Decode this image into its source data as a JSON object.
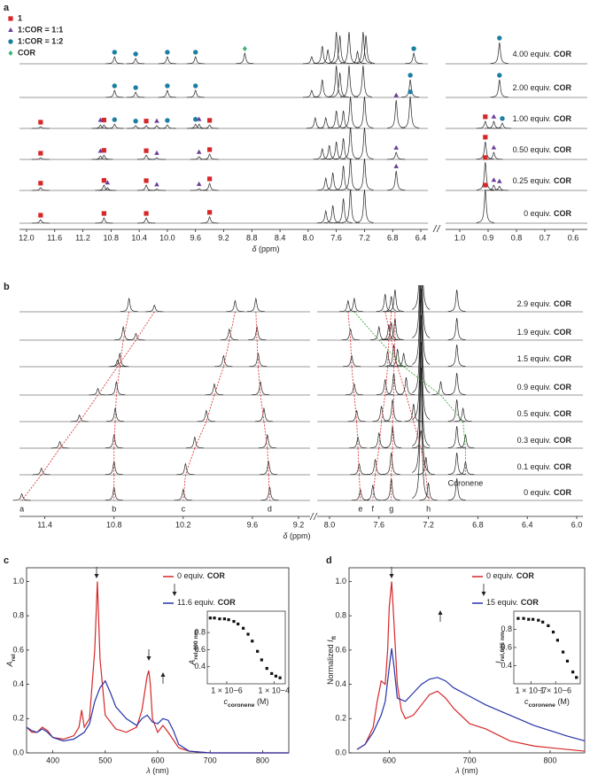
{
  "chart_data": [
    {
      "type": "nmr",
      "panel": "a",
      "compound": "COR",
      "xlabel": [
        "δ",
        " (ppm)"
      ],
      "xlim": [
        12.1,
        6.3
      ],
      "xticks": [
        {
          "value": 12,
          "label": "12.0"
        },
        11.6,
        11.2,
        10.8,
        10.4,
        {
          "value": 10,
          "label": "10.0"
        },
        9.6,
        9.2,
        8.8,
        8.4,
        {
          "value": 8,
          "label": "8.0"
        },
        7.6,
        7.2,
        6.8,
        6.4
      ],
      "x2lim": [
        1.05,
        0.55
      ],
      "x2ticks": [
        {
          "value": 1,
          "label": "1.0"
        },
        0.9,
        0.8,
        0.7,
        0.6
      ],
      "legend": [
        {
          "name": "1",
          "color": "#d62728",
          "marker": "square"
        },
        {
          "name": "1:COR = 1:1",
          "color": "#6a3d9a",
          "marker": "triangle"
        },
        {
          "name": "1:COR = 1:2",
          "color": "#1b7fa3",
          "marker": "circle"
        },
        {
          "name": "COR",
          "color": "#3cb371",
          "marker": "diamond"
        }
      ],
      "series": [
        {
          "name": "4.00 equiv.",
          "x": [
            10.75,
            10.45,
            10.0,
            9.6,
            8.9,
            7.95,
            7.8,
            7.72,
            7.6,
            7.55,
            7.42,
            7.3,
            7.22,
            7.18,
            6.5,
            0.86
          ],
          "values": [
            0.2,
            0.15,
            0.2,
            0.2,
            0.3,
            0.2,
            0.5,
            0.4,
            0.9,
            0.8,
            0.9,
            0.35,
            0.9,
            0.8,
            0.3,
            0.6
          ],
          "markers": [
            [],
            [],
            [
              10.75,
              10.45,
              10.0,
              9.6,
              6.5,
              0.86
            ],
            [
              8.9
            ]
          ]
        },
        {
          "name": "2.00 equiv.",
          "x": [
            10.75,
            10.45,
            10.0,
            9.6,
            7.95,
            7.8,
            7.6,
            7.55,
            7.42,
            7.22,
            6.55,
            0.86
          ],
          "values": [
            0.2,
            0.15,
            0.2,
            0.2,
            0.2,
            0.5,
            0.9,
            0.7,
            0.9,
            0.9,
            0.5,
            0.5
          ],
          "markers": [
            [],
            [],
            [
              10.75,
              10.45,
              10.0,
              9.6,
              6.55,
              0.86
            ],
            []
          ]
        },
        {
          "name": "1.00 equiv.",
          "x": [
            11.8,
            10.95,
            10.9,
            10.75,
            10.45,
            10.3,
            10.15,
            10.0,
            9.6,
            9.55,
            9.4,
            7.9,
            7.75,
            7.6,
            7.5,
            7.4,
            7.2,
            6.75,
            6.55,
            0.91,
            0.88,
            0.85
          ],
          "values": [
            0.05,
            0.1,
            0.1,
            0.12,
            0.08,
            0.08,
            0.08,
            0.1,
            0.12,
            0.12,
            0.1,
            0.3,
            0.3,
            0.5,
            0.5,
            0.9,
            0.9,
            0.8,
            0.9,
            0.2,
            0.2,
            0.15
          ],
          "markers": [
            [
              11.8,
              10.9,
              10.3,
              9.4,
              0.91
            ],
            [
              10.95,
              10.15,
              9.55,
              6.75,
              0.88
            ],
            [
              10.75,
              10.45,
              10.0,
              9.6,
              6.55,
              0.85
            ],
            []
          ]
        },
        {
          "name": "0.50 equiv.",
          "x": [
            11.8,
            10.95,
            10.9,
            10.3,
            10.15,
            9.55,
            9.4,
            7.8,
            7.7,
            7.6,
            7.5,
            7.4,
            7.2,
            6.75,
            0.91,
            0.88
          ],
          "values": [
            0.05,
            0.1,
            0.12,
            0.12,
            0.05,
            0.08,
            0.15,
            0.3,
            0.4,
            0.5,
            0.6,
            0.9,
            0.9,
            0.2,
            0.5,
            0.2
          ],
          "markers": [
            [
              11.8,
              10.9,
              10.3,
              9.4,
              0.91
            ],
            [
              10.95,
              10.15,
              9.55,
              6.75,
              0.88
            ],
            [],
            []
          ]
        },
        {
          "name": "0.25 equiv.",
          "x": [
            11.8,
            10.9,
            10.85,
            10.3,
            10.15,
            9.55,
            9.4,
            7.75,
            7.65,
            7.5,
            7.4,
            7.2,
            6.75,
            0.91,
            0.88,
            0.86
          ],
          "values": [
            0.08,
            0.15,
            0.08,
            0.15,
            0.04,
            0.05,
            0.2,
            0.35,
            0.5,
            0.7,
            0.9,
            0.9,
            0.55,
            0.8,
            0.15,
            0.12
          ],
          "markers": [
            [
              11.8,
              10.9,
              10.3,
              9.4,
              0.91
            ],
            [
              10.85,
              10.15,
              9.55,
              6.75,
              0.88,
              0.86
            ],
            [],
            []
          ]
        },
        {
          "name": "0 equiv.",
          "x": [
            11.8,
            10.9,
            10.3,
            9.4,
            7.75,
            7.65,
            7.5,
            7.4,
            7.2,
            0.91
          ],
          "values": [
            0.1,
            0.15,
            0.15,
            0.18,
            0.35,
            0.5,
            0.7,
            0.95,
            0.95,
            0.95
          ],
          "markers": [
            [
              11.8,
              10.9,
              10.3,
              9.4,
              0.91
            ],
            [],
            [],
            []
          ]
        }
      ]
    },
    {
      "type": "nmr",
      "panel": "b",
      "compound": "COR",
      "xlabel": [
        "δ",
        " (ppm)"
      ],
      "xlim": [
        11.62,
        9.1
      ],
      "xticks": [
        11.4,
        10.8,
        10.2,
        9.6,
        9.2
      ],
      "x2lim": [
        8.1,
        5.95
      ],
      "x2ticks": [
        {
          "value": 8,
          "label": "8.0"
        },
        7.6,
        7.2,
        6.8,
        6.4,
        {
          "value": 6,
          "label": "6.0"
        }
      ],
      "link_colors": [
        "#d62728",
        "#d62728",
        "#d62728",
        "#d62728",
        "#d62728",
        "#d62728",
        "#d62728",
        "#d62728",
        "#2ca02c",
        null,
        null
      ],
      "peak_labels": [
        "a",
        "b",
        "c",
        "d",
        "e",
        "f",
        "g",
        "h",
        "Coronene"
      ],
      "series": [
        {
          "name": "2.9 equiv.",
          "x": [
            10.45,
            10.67,
            9.75,
            9.57,
            7.85,
            7.5,
            7.47,
            7.55,
            7.8,
            7.26,
            6.97
          ],
          "values": [
            0.3,
            0.6,
            0.5,
            0.6,
            0.5,
            0.7,
            1.0,
            0.8,
            0.6,
            6,
            1.0
          ]
        },
        {
          "name": "1.9 equiv.",
          "x": [
            10.61,
            10.72,
            9.8,
            9.56,
            7.83,
            7.52,
            7.47,
            7.5,
            7.6,
            7.26,
            6.97
          ],
          "values": [
            0.3,
            0.6,
            0.5,
            0.6,
            0.5,
            0.7,
            1.0,
            0.8,
            0.6,
            6,
            1.0
          ]
        },
        {
          "name": "1.5 equiv.",
          "x": [
            10.77,
            10.75,
            9.85,
            9.55,
            7.82,
            7.53,
            7.48,
            7.45,
            7.4,
            7.26,
            6.97
          ],
          "values": [
            0.3,
            0.6,
            0.5,
            0.6,
            0.5,
            0.7,
            1.0,
            0.8,
            0.6,
            6,
            1.0
          ]
        },
        {
          "name": "0.9 equiv.",
          "x": [
            10.94,
            10.78,
            9.93,
            9.53,
            7.8,
            7.55,
            7.48,
            7.38,
            7.1,
            7.26,
            6.97
          ],
          "values": [
            0.3,
            0.6,
            0.5,
            0.6,
            0.5,
            0.7,
            1.0,
            0.8,
            0.6,
            6,
            1.0
          ]
        },
        {
          "name": "0.5 equiv.",
          "x": [
            11.1,
            10.79,
            10.0,
            9.5,
            7.78,
            7.58,
            7.49,
            7.32,
            6.92,
            7.26,
            6.97
          ],
          "values": [
            0.3,
            0.6,
            0.5,
            0.6,
            0.5,
            0.7,
            1.0,
            0.8,
            0.6,
            6,
            1.0
          ]
        },
        {
          "name": "0.3 equiv.",
          "x": [
            11.27,
            10.8,
            10.1,
            9.47,
            7.77,
            7.6,
            7.49,
            7.26,
            6.9,
            7.26,
            6.97
          ],
          "values": [
            0.3,
            0.6,
            0.5,
            0.6,
            0.5,
            0.7,
            1.0,
            0.8,
            0.6,
            6,
            1.0
          ]
        },
        {
          "name": "0.1 equiv.",
          "x": [
            11.43,
            10.8,
            10.18,
            9.46,
            7.76,
            7.63,
            7.5,
            7.22,
            6.9,
            7.26,
            6.97
          ],
          "values": [
            0.3,
            0.6,
            0.5,
            0.6,
            0.5,
            0.7,
            1.0,
            0.8,
            0.6,
            6,
            1.0
          ]
        },
        {
          "name": "0 equiv.",
          "x": [
            11.6,
            10.8,
            10.2,
            9.45,
            7.75,
            7.65,
            7.5,
            7.2,
            null,
            7.26,
            6.97
          ],
          "values": [
            0.3,
            0.6,
            0.5,
            0.6,
            0.5,
            0.7,
            1.0,
            0.8,
            null,
            6,
            1.0
          ]
        }
      ]
    },
    {
      "type": "line",
      "panel": "c",
      "compound": "COR",
      "xlabel": [
        "λ",
        " (nm)"
      ],
      "ylabel": [
        "A",
        "rel"
      ],
      "xlim": [
        350,
        850
      ],
      "xticks": [
        400,
        500,
        600,
        700,
        800
      ],
      "ylim": [
        0,
        1.08
      ],
      "yticks": [
        {
          "value": 0,
          "label": "0.0"
        },
        0.2,
        0.4,
        0.6,
        0.8,
        {
          "value": 1,
          "label": "1.0"
        }
      ],
      "series": [
        {
          "name": "0 equiv.",
          "color": "#d62728",
          "x": [
            350,
            360,
            370,
            380,
            390,
            400,
            420,
            440,
            450,
            455,
            460,
            470,
            480,
            485,
            490,
            500,
            520,
            540,
            560,
            570,
            575,
            580,
            583,
            586,
            590,
            600,
            610,
            620,
            640,
            660,
            700,
            750,
            800,
            850
          ],
          "values": [
            0.15,
            0.12,
            0.12,
            0.15,
            0.13,
            0.09,
            0.08,
            0.1,
            0.15,
            0.25,
            0.15,
            0.2,
            0.6,
            1.0,
            0.55,
            0.22,
            0.14,
            0.12,
            0.15,
            0.25,
            0.35,
            0.45,
            0.48,
            0.4,
            0.2,
            0.12,
            0.16,
            0.12,
            0.03,
            0.01,
            0,
            0,
            0,
            0
          ]
        },
        {
          "name": "11.6 equiv.",
          "color": "#2533a8",
          "x": [
            350,
            360,
            370,
            380,
            390,
            400,
            420,
            440,
            460,
            470,
            480,
            490,
            500,
            510,
            520,
            540,
            560,
            570,
            580,
            590,
            600,
            610,
            620,
            630,
            640,
            660,
            700,
            750,
            800,
            850
          ],
          "values": [
            0.15,
            0.13,
            0.12,
            0.14,
            0.12,
            0.09,
            0.07,
            0.08,
            0.12,
            0.17,
            0.3,
            0.38,
            0.42,
            0.35,
            0.27,
            0.2,
            0.16,
            0.2,
            0.22,
            0.18,
            0.17,
            0.2,
            0.19,
            0.13,
            0.05,
            0.01,
            0,
            0,
            0,
            0
          ]
        }
      ],
      "inset": {
        "xlabel": [
          "c",
          "coronene",
          " (M)"
        ],
        "ylabel": [
          "A",
          "rel,490 nm"
        ],
        "log_x": true,
        "color": "#111",
        "xlim": [
          1.5e-07,
          0.0003
        ],
        "xticks": [
          {
            "value": 1e-06,
            "label": "1 × 10−6"
          },
          {
            "value": 0.0001,
            "label": "1 × 10−4"
          }
        ],
        "ylim": [
          0.2,
          1.05
        ],
        "yticks": [
          0.4,
          0.6,
          0.8
        ],
        "x": [
          2e-07,
          3e-07,
          5e-07,
          8e-07,
          1.2e-06,
          2e-06,
          3e-06,
          5e-06,
          8e-06,
          1.2e-05,
          2e-05,
          3e-05,
          5e-05,
          8e-05,
          0.00012,
          0.00018
        ],
        "values": [
          0.97,
          0.97,
          0.96,
          0.96,
          0.95,
          0.93,
          0.9,
          0.85,
          0.78,
          0.7,
          0.58,
          0.48,
          0.38,
          0.32,
          0.29,
          0.27
        ]
      }
    },
    {
      "type": "line",
      "panel": "d",
      "compound": "COR",
      "xlabel": [
        "λ",
        " (nm)"
      ],
      "ylabel": [
        "Normalized ",
        "I",
        "fl"
      ],
      "xlim": [
        550,
        843
      ],
      "xticks": [
        600,
        700,
        800
      ],
      "ylim": [
        0,
        1.08
      ],
      "yticks": [
        {
          "value": 0,
          "label": "0.0"
        },
        0.2,
        0.4,
        0.6,
        0.8,
        {
          "value": 1,
          "label": "1.0"
        }
      ],
      "series": [
        {
          "name": "0 equiv.",
          "color": "#d62728",
          "x": [
            560,
            570,
            580,
            585,
            590,
            595,
            598,
            600,
            603,
            606,
            610,
            615,
            620,
            630,
            640,
            650,
            660,
            670,
            680,
            700,
            720,
            750,
            780,
            800,
            843
          ],
          "values": [
            0.02,
            0.05,
            0.15,
            0.3,
            0.42,
            0.4,
            0.6,
            0.85,
            1.0,
            0.75,
            0.4,
            0.25,
            0.2,
            0.22,
            0.28,
            0.34,
            0.36,
            0.32,
            0.26,
            0.17,
            0.14,
            0.07,
            0.04,
            0.03,
            0.01
          ]
        },
        {
          "name": "15 equiv.",
          "color": "#2533a8",
          "x": [
            560,
            570,
            580,
            590,
            595,
            600,
            603,
            606,
            610,
            620,
            630,
            640,
            650,
            660,
            670,
            680,
            700,
            720,
            750,
            780,
            800,
            820,
            843
          ],
          "values": [
            0.02,
            0.05,
            0.12,
            0.22,
            0.3,
            0.5,
            0.61,
            0.5,
            0.32,
            0.3,
            0.35,
            0.4,
            0.43,
            0.44,
            0.42,
            0.38,
            0.33,
            0.28,
            0.22,
            0.16,
            0.13,
            0.1,
            0.07
          ]
        }
      ],
      "inset": {
        "xlabel": [
          "c",
          "coronene",
          " (M)"
        ],
        "ylabel": [
          "I",
          "rel,605 nm"
        ],
        "log_x": true,
        "color": "#111",
        "xlim": [
          2e-08,
          1e-05
        ],
        "xticks": [
          {
            "value": 1e-07,
            "label": "1 × 10−7"
          },
          {
            "value": 1e-06,
            "label": "1 × 10−6"
          }
        ],
        "ylim": [
          0.2,
          1.0
        ],
        "yticks": [
          0.4,
          0.6,
          0.8
        ],
        "x": [
          3e-08,
          5e-08,
          8e-08,
          1.2e-07,
          2e-07,
          3e-07,
          5e-07,
          8e-07,
          1.2e-06,
          2e-06,
          3e-06,
          5e-06,
          7e-06
        ],
        "values": [
          0.92,
          0.92,
          0.91,
          0.91,
          0.9,
          0.88,
          0.84,
          0.77,
          0.68,
          0.55,
          0.45,
          0.33,
          0.27
        ]
      }
    }
  ]
}
